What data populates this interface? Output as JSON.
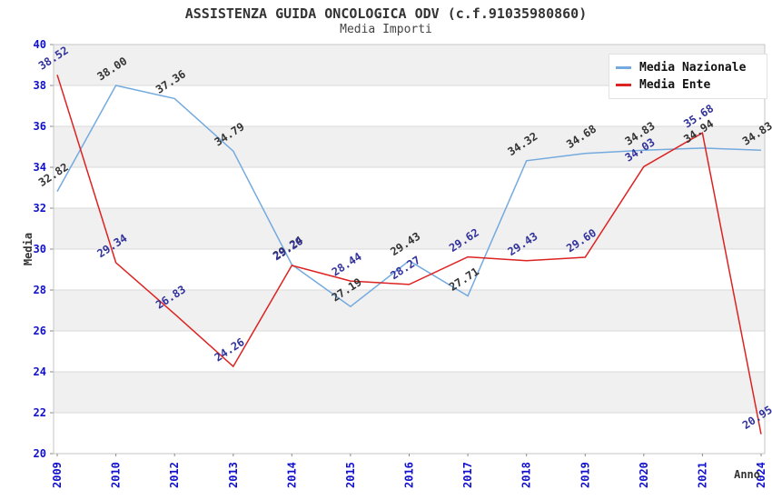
{
  "header": {
    "title": "ASSISTENZA GUIDA ONCOLOGICA ODV (c.f.91035980860)",
    "subtitle": "Media Importi"
  },
  "axes": {
    "ylabel": "Media",
    "xlabel": "Anno"
  },
  "legend": {
    "position": "top-right",
    "items": [
      {
        "label": "Media Nazionale",
        "color": "#74aade"
      },
      {
        "label": "Media Ente",
        "color": "#dd2222"
      }
    ]
  },
  "colors": {
    "band_gray": "#f0f0f0",
    "band_white": "#ffffff",
    "gridline": "#dadada",
    "plot_border": "#c6c6c6",
    "tick_mark": "#8a8a8a",
    "tick_text": "#1010cd",
    "dark_text": "#333333",
    "ente_label_text": "#31319c"
  },
  "chart_data": {
    "type": "line",
    "title": "ASSISTENZA GUIDA ONCOLOGICA ODV (c.f.91035980860)",
    "subtitle": "Media Importi",
    "xlabel": "Anno",
    "ylabel": "Media",
    "x": [
      "2009",
      "2010",
      "2012",
      "2013",
      "2014",
      "2015",
      "2016",
      "2017",
      "2018",
      "2019",
      "2020",
      "2021",
      "2024"
    ],
    "series": [
      {
        "name": "Media Nazionale",
        "color": "#74aade",
        "label_color": "#333333",
        "values": [
          32.82,
          38.0,
          37.36,
          34.79,
          29.24,
          27.19,
          29.43,
          27.71,
          34.32,
          34.68,
          34.83,
          34.94,
          34.83
        ]
      },
      {
        "name": "Media Ente",
        "color": "#dd2222",
        "label_color": "#31319c",
        "values": [
          38.52,
          29.34,
          26.83,
          24.26,
          29.2,
          28.44,
          28.27,
          29.62,
          29.43,
          29.6,
          34.03,
          35.68,
          20.95
        ]
      }
    ],
    "ylim": [
      20,
      40
    ],
    "ytick_step": 2,
    "yticks": [
      20,
      22,
      24,
      26,
      28,
      30,
      32,
      34,
      36,
      38,
      40
    ],
    "grid": "horizontal gridlines with alternating gray/white bands",
    "data_labels": "shown, 2 decimals, rotated",
    "legend_position": "top-right"
  }
}
